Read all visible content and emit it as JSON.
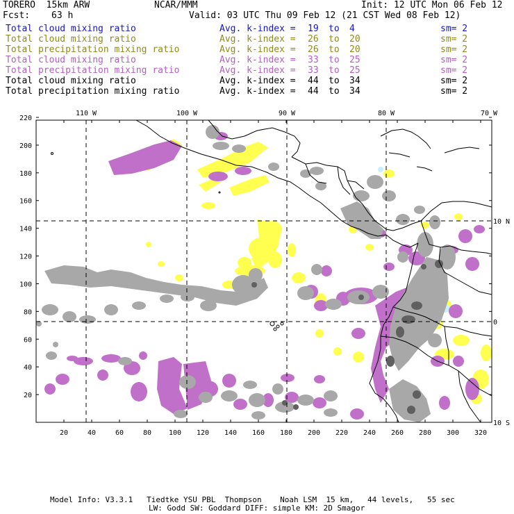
{
  "header": {
    "model": "TORERO  15km ARW",
    "org": "NCAR/MMM",
    "init": "Init: 12 UTC Mon 06 Feb 12",
    "fcst_label": "Fcst:",
    "fcst_value": "63 h",
    "valid": "Valid: 03 UTC Thu 09 Feb 12 (21 CST Wed 08 Feb 12)"
  },
  "legend": [
    {
      "field": "Total cloud mixing ratio",
      "kindex_label": "Avg. k-index =",
      "k_from": "19",
      "to": "to",
      "k_to": "4",
      "sm": "sm= 2",
      "color": "#1515c8"
    },
    {
      "field": "Total cloud mixing ratio",
      "kindex_label": "Avg. k-index =",
      "k_from": "26",
      "to": "to",
      "k_to": "20",
      "sm": "sm= 2",
      "color": "#8c8c1e"
    },
    {
      "field": "Total precipitation mixing ratio",
      "kindex_label": "Avg. k-index =",
      "k_from": "26",
      "to": "to",
      "k_to": "20",
      "sm": "sm= 2",
      "color": "#8c8c1e"
    },
    {
      "field": "Total cloud mixing ratio",
      "kindex_label": "Avg. k-index =",
      "k_from": "33",
      "to": "to",
      "k_to": "25",
      "sm": "sm= 2",
      "color": "#b060c0"
    },
    {
      "field": "Total precipitation mixing ratio",
      "kindex_label": "Avg. k-index =",
      "k_from": "33",
      "to": "to",
      "k_to": "25",
      "sm": "sm= 2",
      "color": "#b060c0"
    },
    {
      "field": "Total cloud mixing ratio",
      "kindex_label": "Avg. k-index =",
      "k_from": "44",
      "to": "to",
      "k_to": "34",
      "sm": "sm= 2",
      "color": "#000000"
    },
    {
      "field": "Total precipitation mixing ratio",
      "kindex_label": "Avg. k-index =",
      "k_from": "44",
      "to": "to",
      "k_to": "34",
      "sm": "sm= 2",
      "color": "#000000"
    }
  ],
  "map": {
    "lon_labels": [
      "110 W",
      "100 W",
      "90 W",
      "80 W",
      "70 W"
    ],
    "lat_labels": [
      "10 N",
      "0",
      "10 S"
    ],
    "x_ticks": [
      "20",
      "40",
      "60",
      "80",
      "100",
      "120",
      "140",
      "160",
      "180",
      "200",
      "220",
      "240",
      "260",
      "280",
      "300",
      "320"
    ],
    "y_ticks": [
      "20",
      "40",
      "60",
      "80",
      "100",
      "120",
      "140",
      "160",
      "180",
      "200",
      "220"
    ],
    "colors": {
      "yellow": "#ffff50",
      "purple": "#c070c8",
      "gray": "#a8a8a8",
      "darkgray": "#606060",
      "lightblue": "#c8f0ff"
    }
  },
  "footer": {
    "line1": "Model Info: V3.3.1   Tiedtke YSU PBL  Thompson    Noah LSM  15 km,   44 levels,   55 sec",
    "line2": "LW: Godd SW: Goddard DIFF: simple KM: 2D Smagor"
  }
}
